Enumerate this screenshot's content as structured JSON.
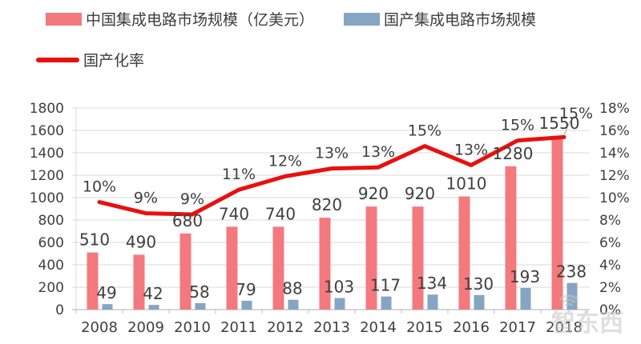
{
  "legend": {
    "items": [
      {
        "label": "中国集成电路市场规模（亿美元）"
      },
      {
        "label": "国产集成电路市场规模"
      },
      {
        "label": "国产化率"
      }
    ]
  },
  "watermark": {
    "text": "智东西"
  },
  "colors": {
    "china_bar": "#f4797e",
    "domestic_bar": "#85a5c2",
    "line": "#e8100e",
    "grid": "#d9d9d9",
    "axis": "#bfbfbf",
    "text": "#3f3f3f",
    "leader": "#a6a6a6",
    "watermark": "#c6c6c6"
  },
  "chart_data": {
    "type": "bar",
    "subtype": "combo dual-axis bar+line",
    "title": "",
    "categories": [
      "2008",
      "2009",
      "2010",
      "2011",
      "2012",
      "2013",
      "2014",
      "2015",
      "2016",
      "2017",
      "2018"
    ],
    "series": [
      {
        "name": "中国集成电路市场规模（亿美元）",
        "type": "bar",
        "axis": "left",
        "values": [
          510,
          490,
          680,
          740,
          740,
          820,
          920,
          920,
          1010,
          1280,
          1550
        ]
      },
      {
        "name": "国产集成电路市场规模",
        "type": "bar",
        "axis": "left",
        "values": [
          49,
          42,
          58,
          79,
          88,
          103,
          117,
          134,
          130,
          193,
          238
        ]
      },
      {
        "name": "国产化率",
        "type": "line",
        "axis": "right",
        "labels": [
          "10%",
          "9%",
          "9%",
          "11%",
          "12%",
          "13%",
          "13%",
          "15%",
          "13%",
          "15%",
          "15%"
        ],
        "values_percent": [
          9.6,
          8.6,
          8.5,
          10.7,
          11.9,
          12.6,
          12.7,
          14.6,
          12.9,
          15.1,
          15.4
        ]
      }
    ],
    "left_axis": {
      "min": 0,
      "max": 1800,
      "step": 200
    },
    "right_axis": {
      "min": 0,
      "max": 18,
      "step": 2,
      "format": "percent"
    },
    "grid": "horizontal",
    "legend_position": "top-left"
  }
}
